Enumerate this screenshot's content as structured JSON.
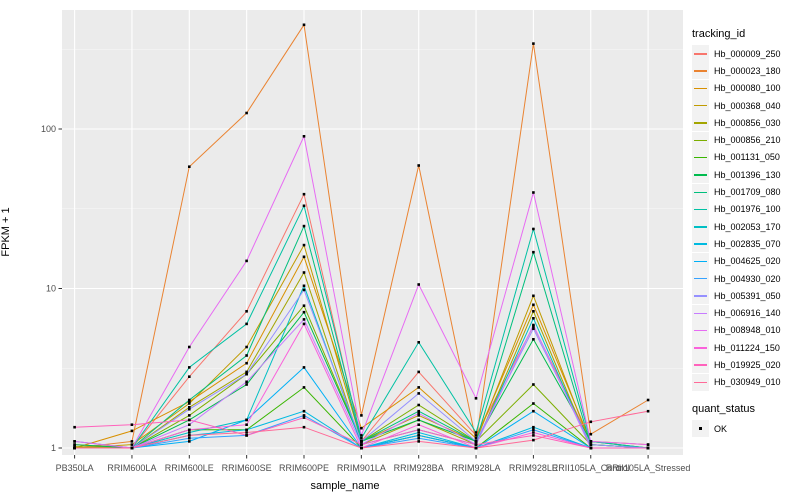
{
  "figure": {
    "x_axis_title": "sample_name",
    "y_axis_title": "FPKM + 1"
  },
  "legend": {
    "title": "tracking_id",
    "quant_title": "quant_status",
    "quant_items": [
      {
        "label": "OK"
      }
    ]
  },
  "chart_data": {
    "type": "line",
    "title": "",
    "xlabel": "sample_name",
    "ylabel": "FPKM + 1",
    "yscale": "log10",
    "yticks": [
      1,
      10,
      100
    ],
    "ytick_labels": [
      "1",
      "10",
      "100"
    ],
    "ylim": [
      0.9,
      550
    ],
    "grid": "white major+minor on grey panel, legend right",
    "panel_color": "#EBEBEB",
    "gridline_color": "#FFFFFF",
    "point_color": "#000000",
    "point_shape": "small black square",
    "categories": [
      "PB350LA",
      "RRIM600LA",
      "RRIM600LE",
      "RRIM600SE",
      "RRIM600PE",
      "RRIM901LA",
      "RRIM928BA",
      "RRIM928LA",
      "RRIM928LE",
      "RRII105LA_Control",
      "RRII105LA_Stressed"
    ],
    "series": [
      {
        "tracking_id": "Hb_000009_250",
        "color": "#F8766D",
        "values": [
          1.05,
          1.0,
          2.8,
          7.2,
          39.0,
          1.1,
          3.0,
          1.2,
          5.8,
          1.1,
          1.0
        ]
      },
      {
        "tracking_id": "Hb_000023_180",
        "color": "#EA8331",
        "values": [
          1.0,
          1.1,
          58.0,
          126.0,
          450.0,
          1.6,
          59.0,
          1.1,
          343.0,
          1.22,
          2.0
        ]
      },
      {
        "tracking_id": "Hb_000080_100",
        "color": "#D89000",
        "values": [
          1.0,
          1.28,
          1.95,
          3.4,
          15.8,
          1.33,
          2.4,
          1.15,
          7.9,
          1.1,
          1.05
        ]
      },
      {
        "tracking_id": "Hb_000368_040",
        "color": "#C09B00",
        "values": [
          1.0,
          1.05,
          1.9,
          4.3,
          18.7,
          1.1,
          1.6,
          1.1,
          9.0,
          1.05,
          1.0
        ]
      },
      {
        "tracking_id": "Hb_000856_030",
        "color": "#A3A500",
        "values": [
          1.02,
          1.0,
          1.8,
          3.0,
          12.6,
          1.05,
          1.5,
          1.05,
          7.2,
          1.0,
          1.0
        ]
      },
      {
        "tracking_id": "Hb_000856_210",
        "color": "#7CAE00",
        "values": [
          1.0,
          1.0,
          1.6,
          2.9,
          7.8,
          1.1,
          1.86,
          1.1,
          2.5,
          1.05,
          1.0
        ]
      },
      {
        "tracking_id": "Hb_001131_050",
        "color": "#39B600",
        "values": [
          1.0,
          1.0,
          1.3,
          1.3,
          2.4,
          1.0,
          1.2,
          1.0,
          1.9,
          1.0,
          1.0
        ]
      },
      {
        "tracking_id": "Hb_001396_130",
        "color": "#00BB4E",
        "values": [
          1.05,
          1.0,
          1.5,
          2.5,
          7.1,
          1.1,
          1.5,
          1.1,
          4.8,
          1.1,
          1.0
        ]
      },
      {
        "tracking_id": "Hb_001709_080",
        "color": "#00BF7D",
        "values": [
          1.0,
          1.0,
          2.0,
          3.8,
          24.6,
          1.1,
          1.7,
          1.1,
          16.9,
          1.05,
          1.0
        ]
      },
      {
        "tracking_id": "Hb_001976_100",
        "color": "#00C1A3",
        "values": [
          1.1,
          1.0,
          3.2,
          6.0,
          33.0,
          1.15,
          4.6,
          1.25,
          23.6,
          1.1,
          1.0
        ]
      },
      {
        "tracking_id": "Hb_002053_170",
        "color": "#00BFC4",
        "values": [
          1.0,
          1.0,
          1.25,
          1.5,
          10.4,
          1.05,
          1.3,
          1.05,
          6.5,
          1.0,
          1.0
        ]
      },
      {
        "tracking_id": "Hb_002835_070",
        "color": "#00BAE0",
        "values": [
          1.0,
          1.0,
          1.2,
          1.3,
          1.7,
          1.0,
          1.25,
          1.0,
          1.35,
          1.0,
          1.0
        ]
      },
      {
        "tracking_id": "Hb_004625_020",
        "color": "#00B0F6",
        "values": [
          1.0,
          1.0,
          1.1,
          1.5,
          3.2,
          1.0,
          1.2,
          1.0,
          1.7,
          1.0,
          1.0
        ]
      },
      {
        "tracking_id": "Hb_004930_020",
        "color": "#35A2FF",
        "values": [
          1.0,
          1.0,
          1.15,
          1.2,
          1.6,
          1.0,
          1.15,
          1.0,
          1.3,
          1.0,
          1.0
        ]
      },
      {
        "tracking_id": "Hb_005391_050",
        "color": "#9590FF",
        "values": [
          1.0,
          1.0,
          1.75,
          2.9,
          9.8,
          1.1,
          2.2,
          1.1,
          5.6,
          1.05,
          1.0
        ]
      },
      {
        "tracking_id": "Hb_006916_140",
        "color": "#C77CFF",
        "values": [
          1.0,
          1.0,
          1.4,
          2.6,
          6.4,
          1.05,
          1.65,
          1.05,
          5.9,
          1.0,
          1.0
        ]
      },
      {
        "tracking_id": "Hb_008948_010",
        "color": "#E76BF3",
        "values": [
          1.1,
          1.0,
          4.3,
          14.9,
          90.0,
          1.2,
          10.6,
          2.05,
          40.0,
          1.1,
          1.05
        ]
      },
      {
        "tracking_id": "Hb_011224_150",
        "color": "#FA62DB",
        "values": [
          1.0,
          1.0,
          1.3,
          1.4,
          6.0,
          1.0,
          1.4,
          1.0,
          1.25,
          1.0,
          1.0
        ]
      },
      {
        "tracking_id": "Hb_019925_020",
        "color": "#FF62BC",
        "values": [
          1.35,
          1.4,
          1.5,
          1.2,
          1.55,
          1.05,
          1.3,
          1.05,
          1.2,
          1.0,
          1.0
        ]
      },
      {
        "tracking_id": "Hb_030949_010",
        "color": "#FF6A98",
        "values": [
          1.0,
          1.0,
          1.2,
          1.25,
          1.35,
          1.0,
          1.1,
          1.0,
          1.12,
          1.46,
          1.7
        ]
      }
    ],
    "quant_status": {
      "title": "quant_status",
      "items": [
        "OK"
      ]
    }
  }
}
